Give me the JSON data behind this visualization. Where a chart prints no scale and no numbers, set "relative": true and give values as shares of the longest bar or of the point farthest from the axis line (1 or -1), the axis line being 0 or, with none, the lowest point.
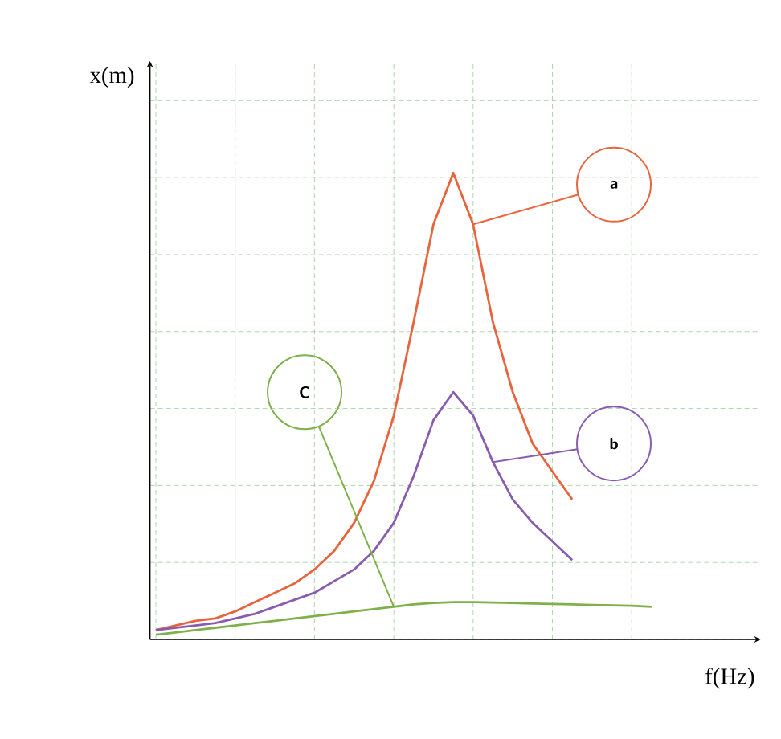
{
  "chart_data": {
    "type": "line",
    "relative": true,
    "xlabel": "f(Hz)",
    "ylabel": "x(m)",
    "grid": true,
    "marker": "none",
    "legend": "right",
    "categories": [
      null,
      null,
      null,
      null,
      null,
      null,
      null,
      null,
      null,
      null,
      null,
      null,
      null,
      null,
      null,
      null,
      null,
      null,
      null,
      null,
      null,
      null,
      null,
      null,
      null,
      null
    ],
    "series": [
      {
        "name": "a",
        "color": "#e8643c",
        "values": [
          0.02,
          0.03,
          0.04,
          0.045,
          0.06,
          0.08,
          0.1,
          0.12,
          0.15,
          0.19,
          0.25,
          0.34,
          0.48,
          0.68,
          0.89,
          1.0,
          0.89,
          0.68,
          0.53,
          0.42,
          0.36,
          0.3,
          null,
          null,
          null,
          null
        ]
      },
      {
        "name": "b",
        "color": "#8a5cb0",
        "values": [
          0.02,
          0.025,
          0.03,
          0.035,
          0.045,
          0.055,
          0.07,
          0.085,
          0.1,
          0.125,
          0.15,
          0.19,
          0.25,
          0.35,
          0.47,
          0.53,
          0.48,
          0.38,
          0.3,
          0.25,
          0.21,
          0.17,
          null,
          null,
          null,
          null
        ]
      },
      {
        "name": "C",
        "color": "#7fb04a",
        "values": [
          0.01,
          0.015,
          0.02,
          0.025,
          0.03,
          0.035,
          0.04,
          0.045,
          0.05,
          0.055,
          0.06,
          0.065,
          0.07,
          0.075,
          0.078,
          0.08,
          0.08,
          0.079,
          0.078,
          0.077,
          0.076,
          0.075,
          0.074,
          0.073,
          0.072,
          0.07
        ]
      }
    ]
  }
}
